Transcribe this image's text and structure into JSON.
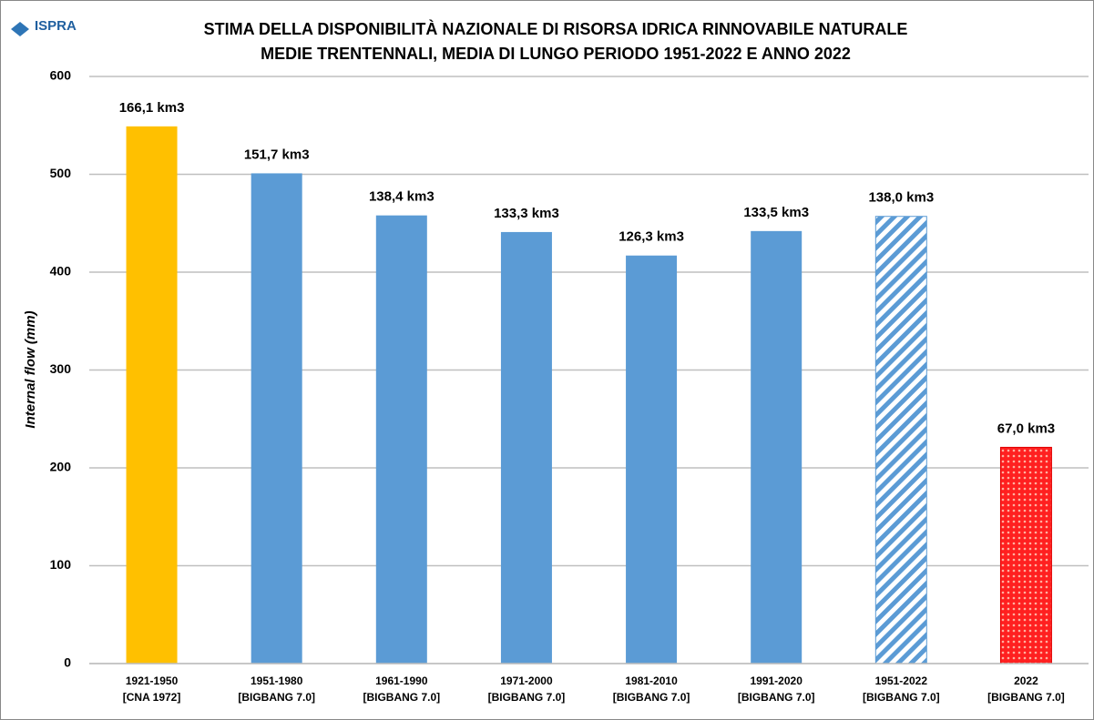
{
  "chart_data": {
    "type": "bar",
    "logo": "ISPRA",
    "title": [
      "STIMA DELLA DISPONIBILITÀ NAZIONALE DI RISORSA IDRICA RINNOVABILE NATURALE",
      "MEDIE TRENTENNALI, MEDIA DI LUNGO PERIODO 1951-2022 E ANNO 2022"
    ],
    "ylabel": "Internal flow (mm)",
    "categories": [
      [
        "1921-1950",
        "[CNA 1972]"
      ],
      [
        "1951-1980",
        "[BIGBANG 7.0]"
      ],
      [
        "1961-1990",
        "[BIGBANG 7.0]"
      ],
      [
        "1971-2000",
        "[BIGBANG 7.0]"
      ],
      [
        "1981-2010",
        "[BIGBANG 7.0]"
      ],
      [
        "1991-2020",
        "[BIGBANG 7.0]"
      ],
      [
        "1951-2022",
        "[BIGBANG 7.0]"
      ],
      [
        "2022",
        "[BIGBANG 7.0]"
      ]
    ],
    "values": [
      549,
      501,
      458,
      441,
      417,
      442,
      457,
      221
    ],
    "annotations": [
      "166,1 km3",
      "151,7 km3",
      "138,4 km3",
      "133,3 km3",
      "126,3 km3",
      "133,5 km3",
      "138,0 km3",
      "67,0 km3"
    ],
    "colors": [
      "#ffc000",
      "#5b9bd5",
      "#5b9bd5",
      "#5b9bd5",
      "#5b9bd5",
      "#5b9bd5",
      "#5b9bd5",
      "#ff0000"
    ],
    "patterns": [
      "solid",
      "solid",
      "solid",
      "solid",
      "solid",
      "solid",
      "hatch",
      "dots"
    ],
    "ylim": [
      0,
      600
    ],
    "yticks": [
      0,
      100,
      200,
      300,
      400,
      500,
      600
    ],
    "grid": true
  }
}
